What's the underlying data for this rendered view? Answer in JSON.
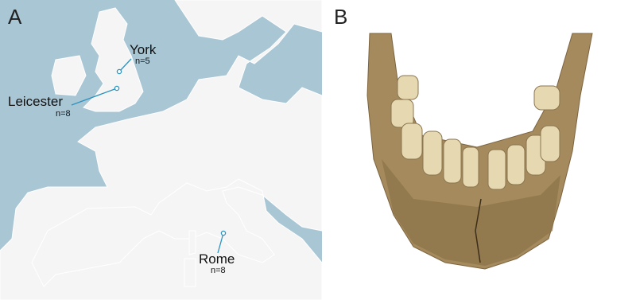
{
  "panels": [
    {
      "label": "A",
      "sites": [
        {
          "name": "York",
          "n": "n=5"
        },
        {
          "name": "Leicester",
          "n": "n=8"
        },
        {
          "name": "Rome",
          "n": "n=8"
        }
      ]
    },
    {
      "label": "B"
    }
  ]
}
